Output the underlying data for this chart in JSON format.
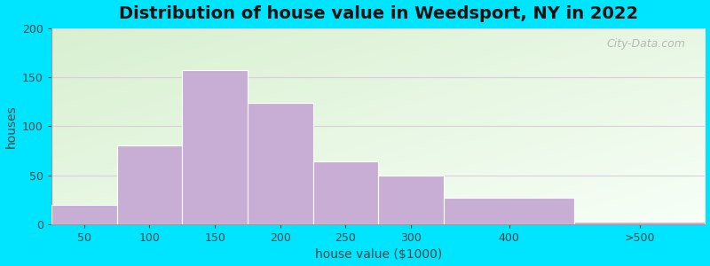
{
  "title": "Distribution of house value in Weedsport, NY in 2022",
  "xlabel": "house value ($1000)",
  "ylabel": "houses",
  "bar_labels": [
    "50",
    "100",
    "150",
    "200",
    "250",
    "300",
    "400",
    ">500"
  ],
  "bar_edges": [
    0,
    1,
    2,
    3,
    4,
    5,
    6,
    8,
    10
  ],
  "bar_values": [
    20,
    80,
    157,
    124,
    64,
    50,
    27,
    3
  ],
  "bar_color": "#c8aed4",
  "bar_edgecolor": "#ffffff",
  "ylim": [
    0,
    200
  ],
  "yticks": [
    0,
    50,
    100,
    150,
    200
  ],
  "outer_bg": "#00e5ff",
  "title_fontsize": 14,
  "axis_label_fontsize": 10,
  "tick_fontsize": 9,
  "watermark_text": "City-Data.com"
}
